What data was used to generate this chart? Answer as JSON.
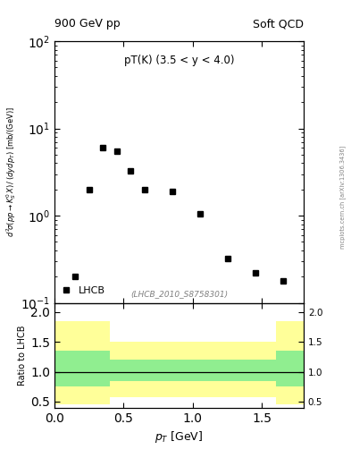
{
  "title_left": "900 GeV pp",
  "title_right": "Soft QCD",
  "annotation": "pT(K) (3.5 < y < 4.0)",
  "watermark": "(LHCB_2010_S8758301)",
  "xlabel": "p_{T} [GeV]",
  "ylabel_ratio": "Ratio to LHCB",
  "right_label": "mcplots.cern.ch [arXiv:1306.3436]",
  "data_x": [
    0.15,
    0.25,
    0.35,
    0.45,
    0.55,
    0.65,
    0.85,
    1.05,
    1.25,
    1.45,
    1.65
  ],
  "data_y": [
    0.2,
    2.0,
    6.0,
    5.5,
    3.3,
    2.0,
    1.9,
    1.05,
    0.32,
    0.22,
    0.18
  ],
  "ratio_bins": [
    0.0,
    0.2,
    0.4,
    0.6,
    0.8,
    1.0,
    1.2,
    1.4,
    1.6,
    1.8
  ],
  "ratio_green_low": [
    0.75,
    0.75,
    0.85,
    0.85,
    0.85,
    0.85,
    0.85,
    0.85,
    0.75
  ],
  "ratio_green_high": [
    1.35,
    1.35,
    1.2,
    1.2,
    1.2,
    1.2,
    1.2,
    1.2,
    1.35
  ],
  "ratio_yellow_low": [
    0.45,
    0.45,
    0.58,
    0.58,
    0.58,
    0.58,
    0.58,
    0.58,
    0.45
  ],
  "ratio_yellow_high": [
    1.85,
    1.85,
    1.5,
    1.5,
    1.5,
    1.5,
    1.5,
    1.5,
    1.85
  ],
  "main_ylim": [
    0.1,
    100
  ],
  "ratio_ylim": [
    0.4,
    2.15
  ],
  "ratio_yticks": [
    0.5,
    1.0,
    1.5,
    2.0
  ],
  "xlim": [
    0.0,
    1.8
  ],
  "marker_color": "black",
  "marker": "s",
  "marker_size": 4,
  "green_color": "#90EE90",
  "yellow_color": "#FFFF99",
  "legend_label": "LHCB",
  "background_color": "white"
}
